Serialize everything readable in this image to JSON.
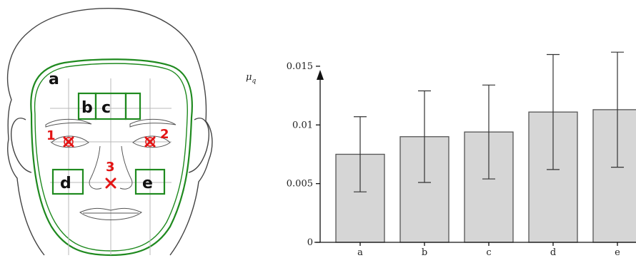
{
  "face": {
    "contour_label": "a",
    "regions": [
      "b",
      "c",
      "d",
      "e"
    ],
    "points": [
      "1",
      "2",
      "3"
    ],
    "roi_color": "#1f8a1f",
    "point_color": "#e31414"
  },
  "chart_data": {
    "type": "bar",
    "ylabel": "μ",
    "ylabel_sub": "q",
    "categories": [
      "a",
      "b",
      "c",
      "d",
      "e"
    ],
    "values": [
      0.0075,
      0.009,
      0.0094,
      0.0111,
      0.0113
    ],
    "error_low": [
      0.0043,
      0.0051,
      0.0054,
      0.0062,
      0.0064
    ],
    "error_high": [
      0.0107,
      0.0129,
      0.0134,
      0.016,
      0.0162
    ],
    "ylim": [
      0,
      0.017
    ],
    "yticks": [
      0,
      0.005,
      0.01,
      0.015
    ],
    "ytick_labels": [
      "0",
      "0.005",
      "0.01",
      "0.015"
    ],
    "bar_color": "#d6d6d6"
  }
}
